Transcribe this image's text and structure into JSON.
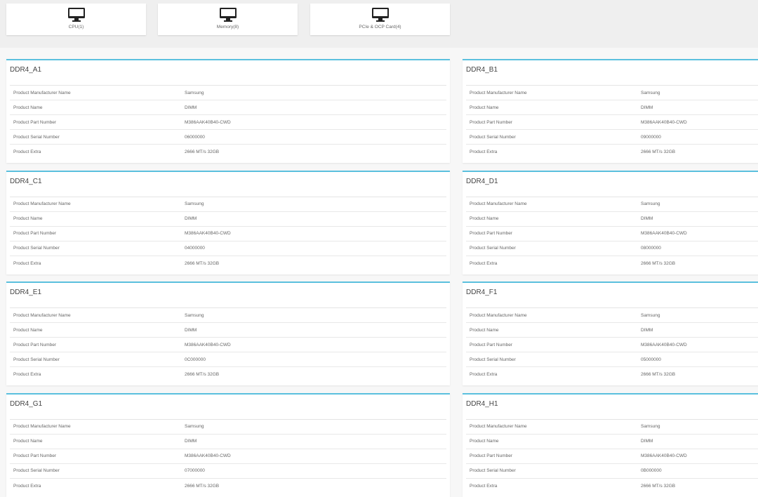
{
  "nav_cards": [
    {
      "label": "CPU(1)",
      "icon": "monitor-icon"
    },
    {
      "label": "Memory(8)",
      "icon": "monitor-icon"
    },
    {
      "label": "PCIe & OCP Card(4)",
      "icon": "monitor-icon"
    }
  ],
  "accent_color": "#5bc0de",
  "field_labels": [
    "Product Manufacturer Name",
    "Product Name",
    "Product Part Number",
    "Product Serial Number",
    "Product Extra"
  ],
  "modules": [
    {
      "title": "DDR4_A1",
      "values": [
        "Samsung",
        "DIMM",
        "M386AAK40B40-CWD",
        "06000000",
        "2666 MT/s 32GB"
      ]
    },
    {
      "title": "DDR4_B1",
      "values": [
        "Samsung",
        "DIMM",
        "M386AAK40B40-CWD",
        "09000000",
        "2666 MT/s 32GB"
      ]
    },
    {
      "title": "DDR4_C1",
      "values": [
        "Samsung",
        "DIMM",
        "M386AAK40B40-CWD",
        "04000000",
        "2666 MT/s 32GB"
      ]
    },
    {
      "title": "DDR4_D1",
      "values": [
        "Samsung",
        "DIMM",
        "M386AAK40B40-CWD",
        "08000000",
        "2666 MT/s 32GB"
      ]
    },
    {
      "title": "DDR4_E1",
      "values": [
        "Samsung",
        "DIMM",
        "M386AAK40B40-CWD",
        "0C000000",
        "2666 MT/s 32GB"
      ]
    },
    {
      "title": "DDR4_F1",
      "values": [
        "Samsung",
        "DIMM",
        "M386AAK40B40-CWD",
        "05000000",
        "2666 MT/s 32GB"
      ]
    },
    {
      "title": "DDR4_G1",
      "values": [
        "Samsung",
        "DIMM",
        "M386AAK40B40-CWD",
        "07000000",
        "2666 MT/s 32GB"
      ]
    },
    {
      "title": "DDR4_H1",
      "values": [
        "Samsung",
        "DIMM",
        "M386AAK40B40-CWD",
        "0B000000",
        "2666 MT/s 32GB"
      ]
    }
  ]
}
